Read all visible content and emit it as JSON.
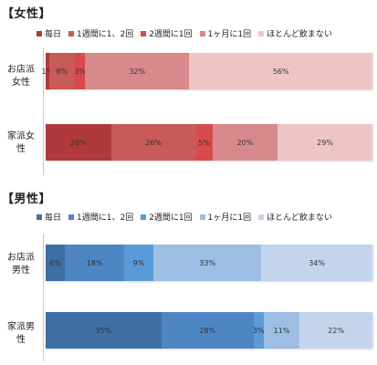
{
  "chart_data": [
    {
      "type": "bar",
      "orientation": "horizontal",
      "stacked": "100%",
      "title": "【女性】",
      "legend_position": "top",
      "categories": [
        "お店派\n女性",
        "家派女\n性"
      ],
      "series": [
        {
          "name": "毎日",
          "color": "#b0393b",
          "values": [
            1,
            20
          ]
        },
        {
          "name": "1週間に1、2回",
          "color": "#c85a5a",
          "values": [
            8,
            26
          ]
        },
        {
          "name": "2週間に1回",
          "color": "#d94a4a",
          "values": [
            3,
            5
          ]
        },
        {
          "name": "1ヶ月に1回",
          "color": "#d8898b",
          "values": [
            32,
            20
          ]
        },
        {
          "name": "ほとんど飲まない",
          "color": "#eec5c5",
          "values": [
            56,
            29
          ]
        }
      ]
    },
    {
      "type": "bar",
      "orientation": "horizontal",
      "stacked": "100%",
      "title": "【男性】",
      "legend_position": "top",
      "categories": [
        "お店派\n男性",
        "家派男\n性"
      ],
      "series": [
        {
          "name": "毎日",
          "color": "#3e6fa5",
          "values": [
            6,
            35
          ]
        },
        {
          "name": "1週間に1、2回",
          "color": "#4e86c4",
          "values": [
            18,
            28
          ]
        },
        {
          "name": "2週間に1回",
          "color": "#5a9ad8",
          "values": [
            9,
            3
          ]
        },
        {
          "name": "1ヶ月に1回",
          "color": "#9dbde3",
          "values": [
            33,
            11
          ]
        },
        {
          "name": "ほとんど飲まない",
          "color": "#c3d5ed",
          "values": [
            34,
            22
          ]
        }
      ]
    }
  ]
}
